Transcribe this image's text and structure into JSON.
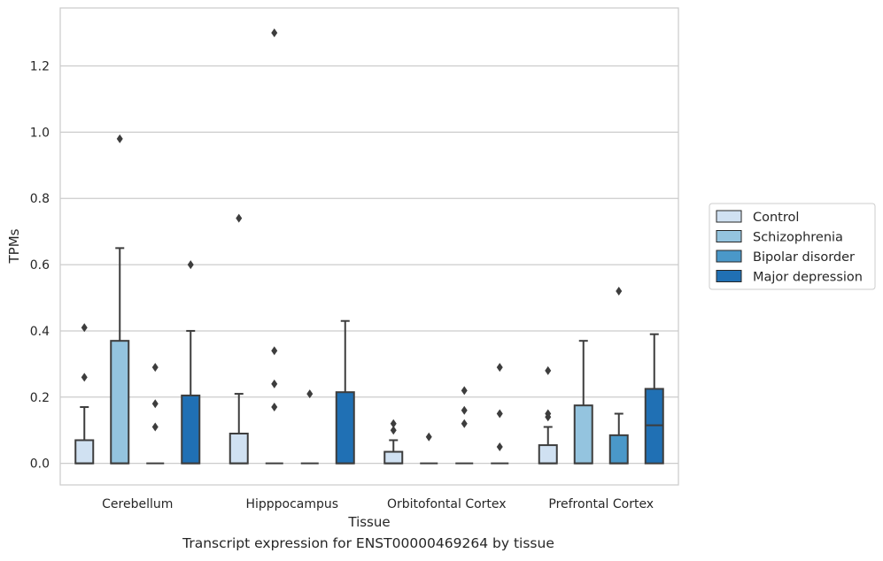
{
  "caption": "Transcript expression for ENST00000469264 by tissue",
  "chart_data": {
    "type": "box",
    "xlabel": "Tissue",
    "ylabel": "TPMs",
    "ylim": [
      -0.065,
      1.375
    ],
    "yticks": [
      0.0,
      0.2,
      0.4,
      0.6,
      0.8,
      1.0,
      1.2
    ],
    "ytick_labels": [
      "0.0",
      "0.2",
      "0.4",
      "0.6",
      "0.8",
      "1.0",
      "1.2"
    ],
    "grid": "horizontal",
    "legend_position": "right",
    "categories": [
      "Cerebellum",
      "Hipppocampus",
      "Orbitofontal Cortex",
      "Prefrontal Cortex"
    ],
    "series": [
      {
        "name": "Control",
        "color": "#d0e1f2",
        "boxes": [
          {
            "q1": 0.0,
            "median": 0.0,
            "q3": 0.07,
            "whisker_low": 0.0,
            "whisker_high": 0.17,
            "outliers": [
              0.26,
              0.41
            ]
          },
          {
            "q1": 0.0,
            "median": 0.0,
            "q3": 0.09,
            "whisker_low": 0.0,
            "whisker_high": 0.21,
            "outliers": [
              0.74
            ]
          },
          {
            "q1": 0.0,
            "median": 0.0,
            "q3": 0.035,
            "whisker_low": 0.0,
            "whisker_high": 0.07,
            "outliers": [
              0.1,
              0.12
            ]
          },
          {
            "q1": 0.0,
            "median": 0.0,
            "q3": 0.055,
            "whisker_low": 0.0,
            "whisker_high": 0.11,
            "outliers": [
              0.14,
              0.15,
              0.28
            ]
          }
        ]
      },
      {
        "name": "Schizophrenia",
        "color": "#94c4df",
        "boxes": [
          {
            "q1": 0.0,
            "median": 0.0,
            "q3": 0.37,
            "whisker_low": 0.0,
            "whisker_high": 0.65,
            "outliers": [
              0.98
            ]
          },
          {
            "q1": 0.0,
            "median": 0.0,
            "q3": 0.0,
            "whisker_low": 0.0,
            "whisker_high": 0.0,
            "outliers": [
              0.17,
              0.24,
              0.34,
              1.3
            ]
          },
          {
            "q1": 0.0,
            "median": 0.0,
            "q3": 0.0,
            "whisker_low": 0.0,
            "whisker_high": 0.0,
            "outliers": [
              0.08
            ]
          },
          {
            "q1": 0.0,
            "median": 0.0,
            "q3": 0.175,
            "whisker_low": 0.0,
            "whisker_high": 0.37,
            "outliers": []
          }
        ]
      },
      {
        "name": "Bipolar disorder",
        "color": "#4a98c9",
        "boxes": [
          {
            "q1": 0.0,
            "median": 0.0,
            "q3": 0.0,
            "whisker_low": 0.0,
            "whisker_high": 0.0,
            "outliers": [
              0.11,
              0.18,
              0.29
            ]
          },
          {
            "q1": 0.0,
            "median": 0.0,
            "q3": 0.0,
            "whisker_low": 0.0,
            "whisker_high": 0.0,
            "outliers": [
              0.21
            ]
          },
          {
            "q1": 0.0,
            "median": 0.0,
            "q3": 0.0,
            "whisker_low": 0.0,
            "whisker_high": 0.0,
            "outliers": [
              0.12,
              0.16,
              0.22
            ]
          },
          {
            "q1": 0.0,
            "median": 0.0,
            "q3": 0.085,
            "whisker_low": 0.0,
            "whisker_high": 0.15,
            "outliers": [
              0.52
            ]
          }
        ]
      },
      {
        "name": "Major depression",
        "color": "#2070b4",
        "boxes": [
          {
            "q1": 0.0,
            "median": 0.0,
            "q3": 0.205,
            "whisker_low": 0.0,
            "whisker_high": 0.4,
            "outliers": [
              0.6
            ]
          },
          {
            "q1": 0.0,
            "median": 0.0,
            "q3": 0.215,
            "whisker_low": 0.0,
            "whisker_high": 0.43,
            "outliers": []
          },
          {
            "q1": 0.0,
            "median": 0.0,
            "q3": 0.0,
            "whisker_low": 0.0,
            "whisker_high": 0.0,
            "outliers": [
              0.05,
              0.15,
              0.29
            ]
          },
          {
            "q1": 0.0,
            "median": 0.115,
            "q3": 0.225,
            "whisker_low": 0.0,
            "whisker_high": 0.39,
            "outliers": []
          }
        ]
      }
    ]
  }
}
